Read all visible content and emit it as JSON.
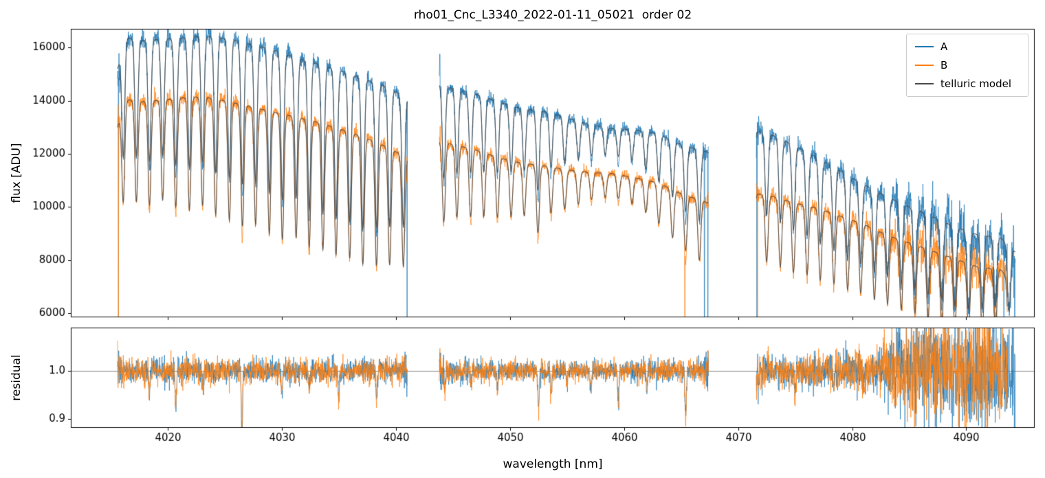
{
  "chart_data": {
    "type": "line",
    "title": "rho01_Cnc_L3340_2022-01-11_05021  order 02",
    "xlabel": "wavelength [nm]",
    "xlim": [
      4011.5,
      4096.0
    ],
    "xticks": [
      4020,
      4030,
      4040,
      4050,
      4060,
      4070,
      4080,
      4090
    ],
    "legend": [
      {
        "label": "A",
        "color": "#1f77b4"
      },
      {
        "label": "B",
        "color": "#ff7f0e"
      },
      {
        "label": "telluric model",
        "color": "#4a4a4a"
      }
    ],
    "panels": [
      {
        "name": "flux",
        "ylabel": "flux [ADU]",
        "ylim": [
          5850,
          16700
        ],
        "yticks": [
          6000,
          8000,
          10000,
          12000,
          14000,
          16000
        ]
      },
      {
        "name": "residual",
        "ylabel": "residual",
        "ylim": [
          0.882,
          1.09
        ],
        "yticks": [
          0.9,
          1.0
        ],
        "yticklabels": [
          "0.9",
          "1.0"
        ],
        "refline": 1.0
      }
    ],
    "segments": {
      "A": [
        [
          4015.6,
          4041.0
        ],
        [
          4043.8,
          4067.4
        ],
        [
          4071.6,
          4094.3
        ]
      ],
      "B": [
        [
          4015.6,
          4041.0
        ],
        [
          4043.8,
          4067.4
        ],
        [
          4071.6,
          4093.6
        ]
      ]
    },
    "sampling_step_nm": 0.02,
    "seed": 42,
    "continuum_x": [
      4015.6,
      4016.3,
      4017.5,
      4019,
      4021,
      4023,
      4025,
      4027,
      4029,
      4031,
      4033,
      4035,
      4037,
      4039,
      4041,
      4043.8,
      4045,
      4047,
      4049,
      4051,
      4053,
      4055,
      4057,
      4059,
      4061,
      4063,
      4065,
      4067.4,
      4071.6,
      4073,
      4075,
      4077,
      4079,
      4081,
      4083,
      4085,
      4087,
      4089,
      4091,
      4093,
      4094.3
    ],
    "continuum_A": [
      15200,
      16400,
      16250,
      16300,
      16350,
      16450,
      16350,
      16150,
      15950,
      15650,
      15400,
      15150,
      14850,
      14550,
      14100,
      14600,
      14450,
      14250,
      13950,
      13700,
      13600,
      13350,
      13100,
      12950,
      12900,
      12750,
      12350,
      12050,
      12850,
      12700,
      12300,
      11850,
      11350,
      10850,
      10400,
      10000,
      9650,
      9250,
      8950,
      8850,
      8300
    ],
    "continuum_B": [
      13000,
      14050,
      13950,
      14000,
      14100,
      14150,
      14000,
      13800,
      13600,
      13400,
      13200,
      12950,
      12650,
      12300,
      11850,
      12450,
      12350,
      12150,
      11850,
      11650,
      11550,
      11400,
      11300,
      11250,
      11100,
      10900,
      10500,
      10150,
      10500,
      10400,
      10150,
      9950,
      9650,
      9350,
      8950,
      8650,
      8350,
      8050,
      7750,
      7650,
      7000
    ],
    "telluric_lines": {
      "width_nm": 0.13,
      "centers": [
        4016.1,
        4017.25,
        4018.4,
        4019.55,
        4020.7,
        4021.9,
        4023.05,
        4024.2,
        4025.4,
        4026.55,
        4027.7,
        4028.9,
        4030.05,
        4031.25,
        4032.4,
        4033.6,
        4034.75,
        4035.95,
        4037.1,
        4038.3,
        4039.45,
        4040.65,
        4041.8,
        4043.0,
        4044.2,
        4045.35,
        4046.55,
        4047.7,
        4048.9,
        4050.1,
        4051.25,
        4052.45,
        4053.6,
        4054.8,
        4056.0,
        4057.15,
        4058.35,
        4059.5,
        4060.7,
        4061.9,
        4063.05,
        4064.25,
        4065.4,
        4066.6,
        4067.8,
        4068.95,
        4070.15,
        4071.3,
        4072.5,
        4073.7,
        4074.85,
        4076.05,
        4077.2,
        4078.4,
        4079.6,
        4080.75,
        4081.95,
        4083.1,
        4084.3,
        4085.5,
        4086.65,
        4087.85,
        4089.0,
        4090.2,
        4091.4,
        4092.55,
        4093.75,
        4094.9
      ],
      "depths": [
        0.26,
        0.27,
        0.28,
        0.27,
        0.29,
        0.3,
        0.29,
        0.31,
        0.32,
        0.33,
        0.32,
        0.34,
        0.35,
        0.34,
        0.36,
        0.36,
        0.37,
        0.37,
        0.38,
        0.37,
        0.36,
        0.35,
        0.3,
        0.26,
        0.24,
        0.22,
        0.21,
        0.2,
        0.19,
        0.18,
        0.17,
        0.22,
        0.15,
        0.13,
        0.11,
        0.09,
        0.08,
        0.08,
        0.09,
        0.11,
        0.14,
        0.17,
        0.2,
        0.22,
        0.24,
        0.25,
        0.25,
        0.25,
        0.24,
        0.25,
        0.26,
        0.26,
        0.27,
        0.27,
        0.28,
        0.28,
        0.29,
        0.29,
        0.3,
        0.3,
        0.31,
        0.31,
        0.32,
        0.32,
        0.31,
        0.3,
        0.29,
        0.28
      ]
    },
    "noise_sigma": {
      "x": [
        4016,
        4030,
        4040,
        4044,
        4055,
        4063,
        4067,
        4072,
        4078,
        4082,
        4083.5,
        4086,
        4090,
        4094.3
      ],
      "s": [
        0.013,
        0.012,
        0.013,
        0.012,
        0.01,
        0.011,
        0.013,
        0.016,
        0.018,
        0.022,
        0.035,
        0.055,
        0.06,
        0.055
      ]
    },
    "residual_dips": {
      "x": [
        4018.4,
        4020.7,
        4023.1,
        4026.5,
        4030.0,
        4032.4,
        4035.0,
        4038.3,
        4044.3,
        4046.6,
        4048.9,
        4052.5,
        4053.6,
        4055.0,
        4057.1,
        4059.5,
        4062.0,
        4065.4,
        4075.0,
        4078.4,
        4081.0
      ],
      "d": [
        0.05,
        0.08,
        0.04,
        0.12,
        0.05,
        0.04,
        0.06,
        0.05,
        0.04,
        0.03,
        0.035,
        0.08,
        0.05,
        0.03,
        0.04,
        0.065,
        0.035,
        0.1,
        0.035,
        0.035,
        0.03
      ]
    },
    "spikes": [
      {
        "x": 4015.68,
        "series": "AB",
        "v": "bottom"
      },
      {
        "x": 4040.98,
        "series": "A",
        "v": "bottom"
      },
      {
        "x": 4043.85,
        "series": "A",
        "v": 15750
      },
      {
        "x": 4065.33,
        "series": "B",
        "v": "bottom"
      },
      {
        "x": 4067.05,
        "series": "A",
        "v": "bottom"
      },
      {
        "x": 4067.35,
        "series": "A",
        "v": "bottom"
      },
      {
        "x": 4071.65,
        "series": "A",
        "v": "bottom"
      },
      {
        "x": 4071.7,
        "series": "B",
        "v": "bottom"
      },
      {
        "x": 4093.3,
        "series": "A",
        "v": "bottom"
      },
      {
        "x": 4094.25,
        "series": "A",
        "v": "bottom"
      }
    ]
  }
}
